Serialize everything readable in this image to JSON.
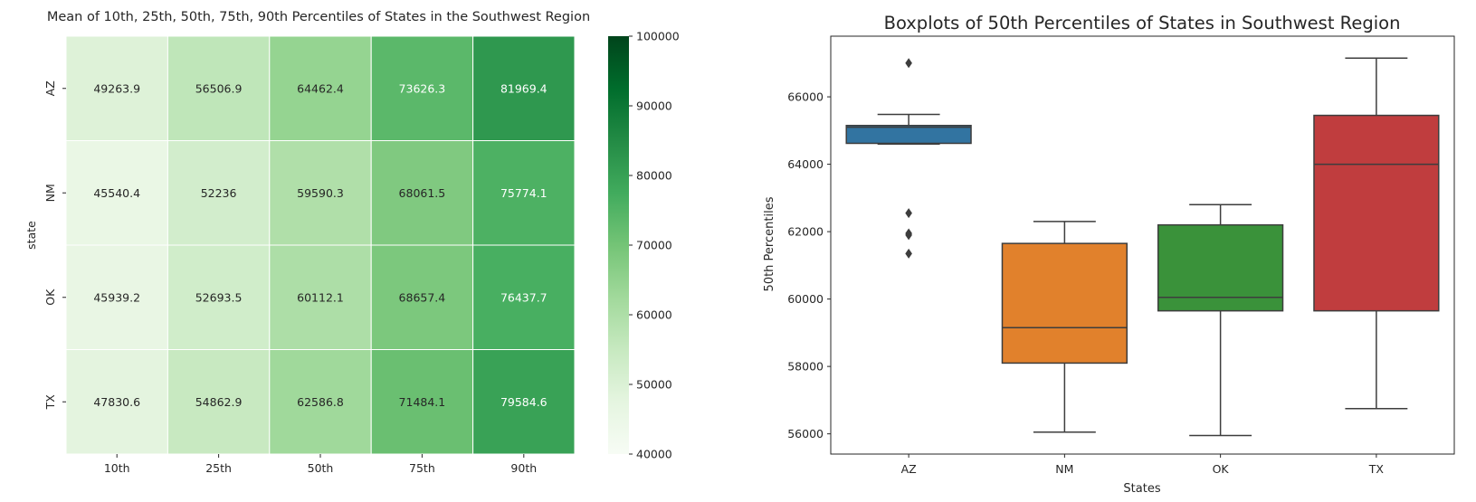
{
  "chart_data": [
    {
      "type": "heatmap",
      "title": "Mean of 10th, 25th, 50th, 75th, 90th Percentiles of States in the Southwest Region",
      "xlabel": "",
      "ylabel": "state",
      "x_categories": [
        "10th",
        "25th",
        "50th",
        "75th",
        "90th"
      ],
      "y_categories": [
        "AZ",
        "NM",
        "OK",
        "TX"
      ],
      "values": [
        [
          49263.9,
          56506.9,
          64462.4,
          73626.3,
          81969.4
        ],
        [
          45540.4,
          52236,
          59590.3,
          68061.5,
          75774.1
        ],
        [
          45939.2,
          52693.5,
          60112.1,
          68657.4,
          76437.7
        ],
        [
          47830.6,
          54862.9,
          62586.8,
          71484.1,
          79584.6
        ]
      ],
      "cell_labels": [
        [
          "49263.9",
          "56506.9",
          "64462.4",
          "73626.3",
          "81969.4"
        ],
        [
          "45540.4",
          "52236",
          "59590.3",
          "68061.5",
          "75774.1"
        ],
        [
          "45939.2",
          "52693.5",
          "60112.1",
          "68657.4",
          "76437.7"
        ],
        [
          "47830.6",
          "54862.9",
          "62586.8",
          "71484.1",
          "79584.6"
        ]
      ],
      "colorbar": {
        "range": [
          40000,
          100000
        ],
        "ticks": [
          "40000",
          "50000",
          "60000",
          "70000",
          "80000",
          "90000",
          "100000"
        ],
        "colormap": "Greens",
        "colors": [
          "#f7fcf5",
          "#e5f5e0",
          "#c7e9c0",
          "#a1d99b",
          "#74c476",
          "#41ab5d",
          "#238b45",
          "#006d2c",
          "#00441b"
        ]
      },
      "grid": false
    },
    {
      "type": "box",
      "title": "Boxplots of 50th Percentiles of States in Southwest Region",
      "xlabel": "States",
      "ylabel": "50th Percentiles",
      "categories": [
        "AZ",
        "NM",
        "OK",
        "TX"
      ],
      "ylim": [
        55400,
        67800
      ],
      "yticks": [
        "56000",
        "58000",
        "60000",
        "62000",
        "64000",
        "66000"
      ],
      "boxes": [
        {
          "name": "AZ",
          "color": "#3274a1",
          "whisker_low": 64600,
          "q1": 64620,
          "median": 65100,
          "q3": 65150,
          "whisker_high": 65480,
          "outliers": [
            67000,
            62550,
            61950,
            61900,
            61350
          ]
        },
        {
          "name": "NM",
          "color": "#e1812c",
          "whisker_low": 56050,
          "q1": 58100,
          "median": 59150,
          "q3": 61650,
          "whisker_high": 62300,
          "outliers": []
        },
        {
          "name": "OK",
          "color": "#3a923a",
          "whisker_low": 55950,
          "q1": 59650,
          "median": 60050,
          "q3": 62200,
          "whisker_high": 62800,
          "outliers": []
        },
        {
          "name": "TX",
          "color": "#c03d3e",
          "whisker_low": 56750,
          "q1": 59650,
          "median": 64000,
          "q3": 65450,
          "whisker_high": 67150,
          "outliers": []
        }
      ],
      "grid": false
    }
  ]
}
